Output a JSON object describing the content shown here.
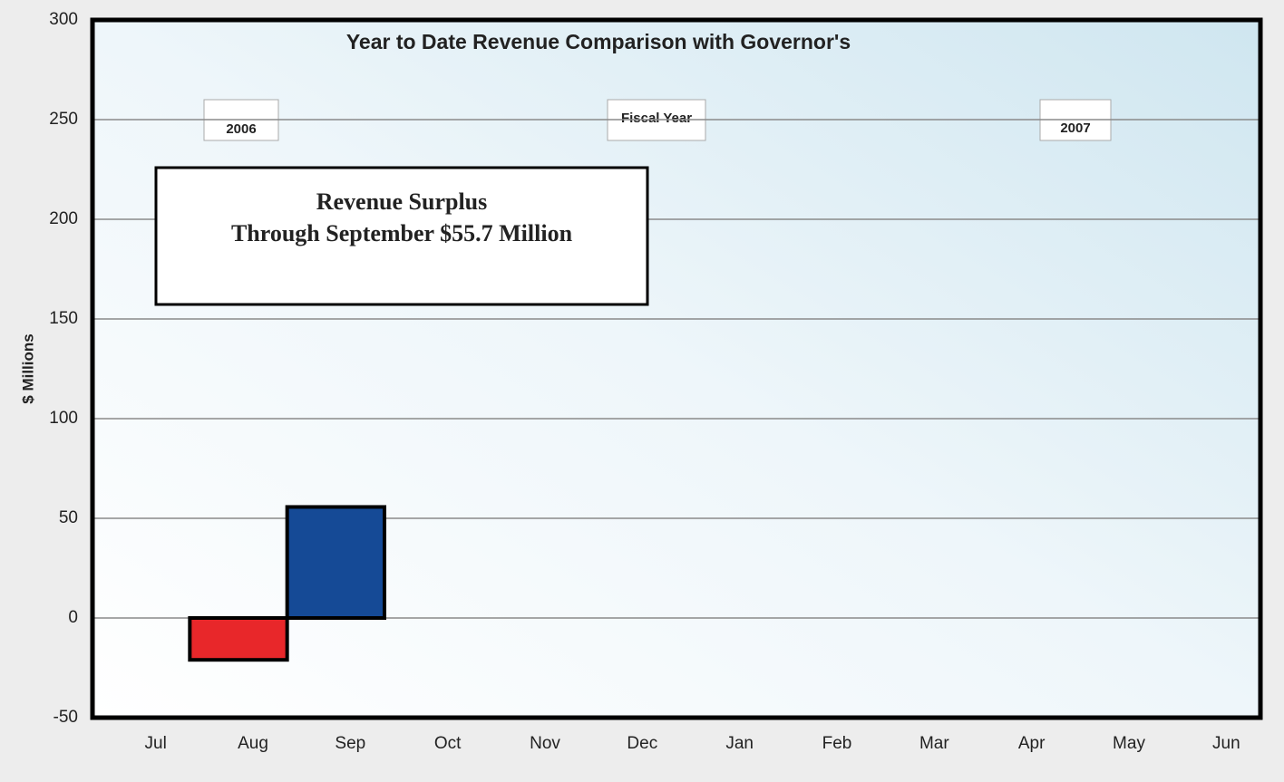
{
  "chart_data": {
    "type": "bar",
    "title": "Year to Date Revenue Comparison with Governor's",
    "y_label": "$ Millions",
    "annotations": [
      "2006",
      "Fiscal Year",
      "2007"
    ],
    "callout": [
      "Revenue Surplus",
      "Through September $55.7 Million"
    ],
    "categories": [
      "Jul",
      "Aug",
      "Sep",
      "Oct",
      "Nov",
      "Dec",
      "Jan",
      "Feb",
      "Mar",
      "Apr",
      "May",
      "Jun"
    ],
    "values": [
      0,
      -21,
      55.7,
      null,
      null,
      null,
      null,
      null,
      null,
      null,
      null,
      null
    ],
    "positive_color": "#154a96",
    "negative_color": "#e8272a",
    "ylim": [
      -50,
      300
    ],
    "yticks": [
      -50,
      0,
      50,
      100,
      150,
      200,
      250,
      300
    ],
    "grid": true
  }
}
